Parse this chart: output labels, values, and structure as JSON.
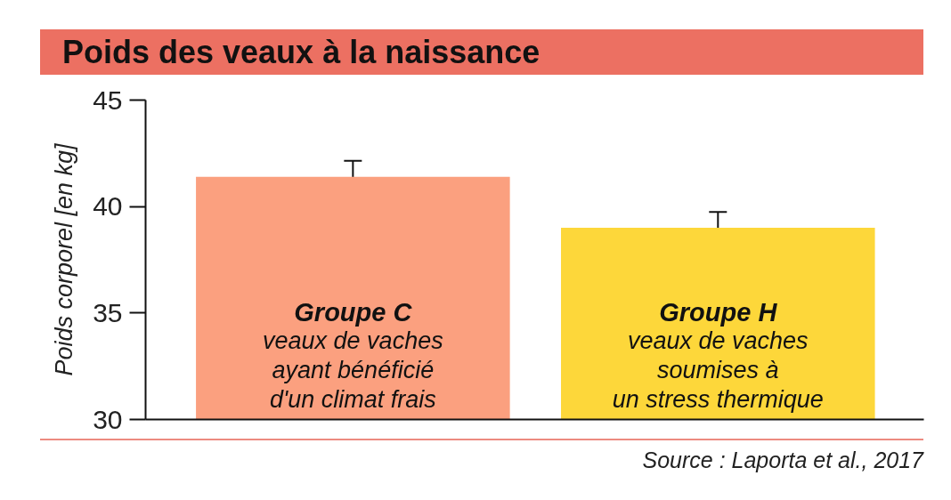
{
  "chart_data": {
    "type": "bar",
    "title": "Poids des veaux à la naissance",
    "ylabel": "Poids corporel [en kg]",
    "categories": [
      "Groupe C",
      "Groupe H"
    ],
    "values": [
      41.4,
      39.0
    ],
    "colors": [
      "#fba07f",
      "#fdd73a"
    ],
    "errors": [
      0.75,
      0.75
    ],
    "ylim": [
      30,
      45
    ],
    "yticks": [
      30,
      35,
      40,
      45
    ],
    "grid": false,
    "tick_labels": "y",
    "annotations": [
      "veaux de vaches\nayant bénéficié\nd'un climat frais",
      "veaux de vaches\nsoumises à\nun stress thermique",
      "Source : Laporta et al., 2017"
    ]
  }
}
